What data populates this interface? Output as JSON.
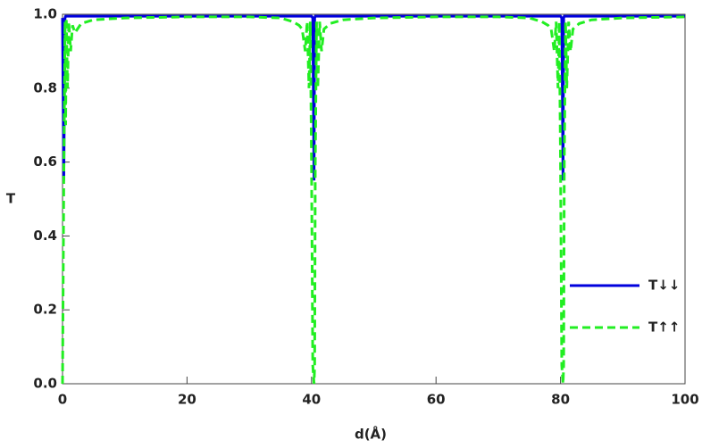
{
  "chart_data": {
    "type": "line",
    "xlabel": "d(Å)",
    "ylabel": "T",
    "x": [
      0,
      0.2,
      0.4,
      0.5,
      0.6,
      0.8,
      1.0,
      1.3,
      1.6,
      2,
      3,
      5,
      10,
      20,
      30,
      35,
      37,
      38,
      38.5,
      39,
      39.3,
      39.6,
      39.8,
      40,
      40.2,
      40.4,
      40.5,
      40.6,
      40.8,
      41,
      41.3,
      41.6,
      42,
      43,
      45,
      50,
      60,
      70,
      75,
      77,
      78,
      78.5,
      79,
      79.3,
      79.6,
      79.8,
      80,
      80.2,
      80.4,
      80.5,
      80.6,
      80.8,
      81,
      81.3,
      81.6,
      82,
      83,
      85,
      90,
      100
    ],
    "series": [
      {
        "name": "T↓↓",
        "color": "#0000dd",
        "dash": false,
        "values": [
          0.99,
          0.55,
          0.99,
          0.995,
          0.995,
          0.995,
          0.995,
          0.995,
          0.995,
          0.995,
          0.995,
          0.995,
          0.995,
          0.995,
          0.995,
          0.995,
          0.995,
          0.995,
          0.995,
          0.995,
          0.995,
          0.995,
          0.995,
          0.995,
          0.99,
          0.55,
          0.99,
          0.995,
          0.995,
          0.995,
          0.995,
          0.995,
          0.995,
          0.995,
          0.995,
          0.995,
          0.995,
          0.995,
          0.995,
          0.995,
          0.995,
          0.995,
          0.995,
          0.995,
          0.995,
          0.995,
          0.995,
          0.99,
          0.55,
          0.99,
          0.995,
          0.995,
          0.995,
          0.995,
          0.995,
          0.995,
          0.995,
          0.995,
          0.995,
          0.995
        ]
      },
      {
        "name": "T↑↑",
        "color": "#22ee22",
        "dash": true,
        "values": [
          0,
          0.55,
          0.98,
          0.7,
          0.99,
          0.8,
          0.98,
          0.9,
          0.97,
          0.95,
          0.975,
          0.985,
          0.99,
          0.993,
          0.993,
          0.99,
          0.98,
          0.97,
          0.96,
          0.9,
          0.98,
          0.8,
          0.98,
          0.6,
          0.05,
          0,
          0.05,
          0.6,
          0.98,
          0.8,
          0.98,
          0.9,
          0.96,
          0.975,
          0.985,
          0.99,
          0.993,
          0.993,
          0.99,
          0.98,
          0.97,
          0.96,
          0.9,
          0.98,
          0.8,
          0.98,
          0.6,
          0.05,
          0,
          0.05,
          0.6,
          0.98,
          0.8,
          0.98,
          0.9,
          0.96,
          0.975,
          0.985,
          0.99,
          0.993
        ]
      }
    ],
    "xlim": [
      0,
      100
    ],
    "xticks": [
      0,
      20,
      40,
      60,
      80,
      100
    ],
    "ylim": [
      0,
      1
    ],
    "yticks": [
      {
        "value": 0,
        "label": "0.0"
      },
      0.2,
      0.4,
      0.6,
      0.8,
      {
        "value": 1,
        "label": "1.0"
      }
    ],
    "legend": "right"
  }
}
